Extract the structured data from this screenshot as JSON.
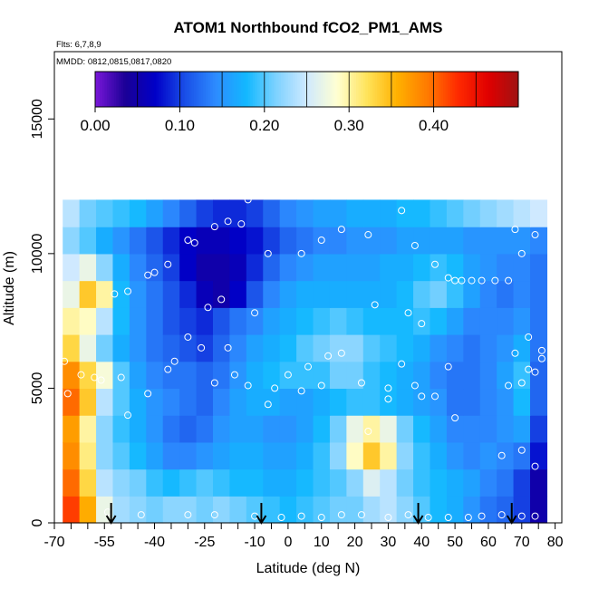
{
  "chart_data": {
    "type": "heatmap",
    "title": "ATOM1 Northbound fCO2_PM1_AMS",
    "flights_note": "Flts: 6,7,8,9",
    "dates_note": "MMDD: 0812,0815,0817,0820",
    "xlabel": "Latitude (deg N)",
    "ylabel": "Altitude (m)",
    "xlim": [
      -70,
      82
    ],
    "ylim": [
      0,
      17500
    ],
    "x_ticks": [
      -70,
      -55,
      -40,
      -25,
      -10,
      0,
      10,
      20,
      30,
      40,
      50,
      60,
      70,
      80
    ],
    "x_ticklabels": [
      "-70",
      "-55",
      "-40",
      "-25",
      "-10",
      "0",
      "10",
      "20",
      "30",
      "40",
      "50",
      "60",
      "70",
      "80"
    ],
    "x_minor_ticks": [
      -65,
      -60,
      -50,
      -45,
      -35,
      -30,
      -20,
      -15,
      -5,
      5,
      15,
      25,
      35,
      45,
      55,
      65,
      75
    ],
    "y_ticks": [
      0,
      5000,
      10000,
      15000
    ],
    "y_ticklabels": [
      "0",
      "5000",
      "10000",
      "15000"
    ],
    "colorbar": {
      "ticks": [
        0.0,
        0.1,
        0.2,
        0.3,
        0.4
      ],
      "ticklabels": [
        "0.00",
        "0.10",
        "0.20",
        "0.30",
        "0.40"
      ],
      "range": [
        0.0,
        0.5
      ],
      "colors": [
        "#7a17d9",
        "#1a0096",
        "#0000c8",
        "#1a50e8",
        "#2d8cff",
        "#12b8ff",
        "#7fd2ff",
        "#cfe9ff",
        "#ffffd2",
        "#ffe35a",
        "#ffb000",
        "#ff7a00",
        "#ff2a00",
        "#e00000",
        "#a01212"
      ]
    },
    "flight_arrows_lat": [
      -53,
      -8,
      39,
      67
    ],
    "x_centers": [
      -65,
      -60,
      -55,
      -50,
      -45,
      -40,
      -35,
      -30,
      -25,
      -20,
      -15,
      -10,
      -5,
      0,
      5,
      10,
      15,
      20,
      25,
      30,
      35,
      40,
      45,
      50,
      55,
      60,
      65,
      70,
      75
    ],
    "alt_levels": [
      500,
      1500,
      2500,
      3500,
      4500,
      5500,
      6500,
      7500,
      8500,
      9500,
      10500,
      11500
    ],
    "values": [
      [
        0.42,
        0.36,
        0.27,
        0.23,
        0.22,
        0.21,
        0.22,
        0.22,
        0.21,
        0.22,
        0.21,
        0.2,
        0.19,
        0.18,
        0.19,
        0.2,
        0.21,
        0.21,
        0.23,
        0.24,
        0.22,
        0.2,
        0.18,
        0.17,
        0.15,
        0.13,
        0.12,
        0.1,
        0.05
      ],
      [
        0.4,
        0.33,
        0.24,
        0.22,
        0.21,
        0.19,
        0.18,
        0.19,
        0.2,
        0.19,
        0.18,
        0.18,
        0.17,
        0.17,
        0.18,
        0.19,
        0.2,
        0.22,
        0.26,
        0.24,
        0.21,
        0.19,
        0.18,
        0.17,
        0.16,
        0.14,
        0.13,
        0.1,
        0.05
      ],
      [
        0.38,
        0.31,
        0.22,
        0.2,
        0.18,
        0.16,
        0.14,
        0.14,
        0.15,
        0.16,
        0.17,
        0.17,
        0.16,
        0.16,
        0.17,
        0.19,
        0.22,
        0.29,
        0.34,
        0.3,
        0.22,
        0.19,
        0.17,
        0.15,
        0.14,
        0.15,
        0.14,
        0.13,
        0.08
      ],
      [
        0.37,
        0.3,
        0.22,
        0.19,
        0.17,
        0.15,
        0.13,
        0.12,
        0.13,
        0.15,
        0.16,
        0.16,
        0.15,
        0.15,
        0.16,
        0.18,
        0.21,
        0.27,
        0.3,
        0.27,
        0.21,
        0.18,
        0.16,
        0.14,
        0.14,
        0.14,
        0.15,
        0.16,
        0.1
      ],
      [
        0.4,
        0.34,
        0.24,
        0.2,
        0.17,
        0.15,
        0.14,
        0.13,
        0.12,
        0.14,
        0.16,
        0.17,
        0.17,
        0.16,
        0.16,
        0.17,
        0.18,
        0.19,
        0.19,
        0.18,
        0.17,
        0.16,
        0.15,
        0.13,
        0.13,
        0.14,
        0.15,
        0.18,
        0.12
      ],
      [
        0.38,
        0.33,
        0.28,
        0.2,
        0.16,
        0.14,
        0.13,
        0.13,
        0.12,
        0.13,
        0.15,
        0.17,
        0.18,
        0.19,
        0.19,
        0.19,
        0.21,
        0.21,
        0.19,
        0.18,
        0.17,
        0.16,
        0.14,
        0.13,
        0.13,
        0.14,
        0.16,
        0.19,
        0.12
      ],
      [
        0.33,
        0.27,
        0.21,
        0.17,
        0.15,
        0.13,
        0.12,
        0.11,
        0.1,
        0.12,
        0.14,
        0.16,
        0.17,
        0.18,
        0.2,
        0.21,
        0.22,
        0.22,
        0.2,
        0.19,
        0.18,
        0.17,
        0.15,
        0.14,
        0.13,
        0.14,
        0.15,
        0.17,
        0.13
      ],
      [
        0.3,
        0.29,
        0.24,
        0.18,
        0.15,
        0.13,
        0.11,
        0.1,
        0.09,
        0.11,
        0.13,
        0.14,
        0.16,
        0.17,
        0.18,
        0.19,
        0.2,
        0.19,
        0.18,
        0.18,
        0.18,
        0.19,
        0.18,
        0.16,
        0.14,
        0.14,
        0.14,
        0.15,
        0.13
      ],
      [
        0.27,
        0.34,
        0.3,
        0.18,
        0.15,
        0.13,
        0.11,
        0.09,
        0.06,
        0.05,
        0.07,
        0.11,
        0.14,
        0.16,
        0.17,
        0.17,
        0.17,
        0.17,
        0.17,
        0.17,
        0.18,
        0.2,
        0.21,
        0.19,
        0.16,
        0.14,
        0.13,
        0.14,
        0.13
      ],
      [
        0.25,
        0.27,
        0.22,
        0.17,
        0.14,
        0.12,
        0.1,
        0.07,
        0.05,
        0.05,
        0.06,
        0.09,
        0.12,
        0.14,
        0.15,
        0.16,
        0.16,
        0.16,
        0.16,
        0.17,
        0.17,
        0.18,
        0.19,
        0.18,
        0.16,
        0.15,
        0.14,
        0.14,
        0.13
      ],
      [
        0.22,
        0.2,
        0.17,
        0.15,
        0.13,
        0.11,
        0.09,
        0.07,
        0.06,
        0.06,
        0.07,
        0.08,
        0.1,
        0.12,
        0.13,
        0.14,
        0.14,
        0.15,
        0.15,
        0.15,
        0.16,
        0.16,
        0.16,
        0.16,
        0.15,
        0.15,
        0.15,
        0.15,
        0.14
      ],
      [
        0.24,
        0.21,
        0.2,
        0.19,
        0.18,
        0.16,
        0.14,
        0.12,
        0.1,
        0.09,
        0.09,
        0.1,
        0.12,
        0.14,
        0.15,
        0.16,
        0.16,
        0.17,
        0.17,
        0.17,
        0.18,
        0.18,
        0.19,
        0.2,
        0.21,
        0.22,
        0.23,
        0.24,
        0.25
      ]
    ],
    "sample_points": [
      [
        -67,
        6000
      ],
      [
        -66,
        4800
      ],
      [
        -62,
        5500
      ],
      [
        -58,
        5400
      ],
      [
        -56,
        5300
      ],
      [
        -50,
        5400
      ],
      [
        -52,
        8500
      ],
      [
        -48,
        8600
      ],
      [
        -42,
        9200
      ],
      [
        -40,
        9300
      ],
      [
        -36,
        9600
      ],
      [
        -30,
        10500
      ],
      [
        -28,
        10400
      ],
      [
        -22,
        11000
      ],
      [
        -18,
        11200
      ],
      [
        -14,
        11100
      ],
      [
        -12,
        12000
      ],
      [
        -6,
        10000
      ],
      [
        4,
        10000
      ],
      [
        10,
        10500
      ],
      [
        16,
        10900
      ],
      [
        24,
        10700
      ],
      [
        34,
        11600
      ],
      [
        38,
        10300
      ],
      [
        44,
        9600
      ],
      [
        48,
        9100
      ],
      [
        50,
        9000
      ],
      [
        52,
        9000
      ],
      [
        55,
        9000
      ],
      [
        58,
        9000
      ],
      [
        62,
        9000
      ],
      [
        66,
        9000
      ],
      [
        68,
        10900
      ],
      [
        70,
        10000
      ],
      [
        74,
        10700
      ],
      [
        -24,
        8000
      ],
      [
        -20,
        8300
      ],
      [
        -10,
        7800
      ],
      [
        26,
        8100
      ],
      [
        36,
        7800
      ],
      [
        40,
        7400
      ],
      [
        -30,
        6900
      ],
      [
        -26,
        6500
      ],
      [
        -18,
        6500
      ],
      [
        -36,
        5700
      ],
      [
        -34,
        6000
      ],
      [
        -16,
        5500
      ],
      [
        -12,
        5100
      ],
      [
        -4,
        5000
      ],
      [
        0,
        5500
      ],
      [
        4,
        4900
      ],
      [
        6,
        5800
      ],
      [
        10,
        5100
      ],
      [
        12,
        6200
      ],
      [
        16,
        6300
      ],
      [
        22,
        5200
      ],
      [
        30,
        5000
      ],
      [
        34,
        5900
      ],
      [
        38,
        5100
      ],
      [
        40,
        4700
      ],
      [
        44,
        4700
      ],
      [
        48,
        5800
      ],
      [
        -48,
        4000
      ],
      [
        -42,
        4800
      ],
      [
        -22,
        5200
      ],
      [
        -6,
        4400
      ],
      [
        24,
        3400
      ],
      [
        30,
        4600
      ],
      [
        50,
        3900
      ],
      [
        64,
        2500
      ],
      [
        70,
        2700
      ],
      [
        74,
        2100
      ],
      [
        66,
        5100
      ],
      [
        70,
        5200
      ],
      [
        72,
        5700
      ],
      [
        74,
        5600
      ],
      [
        76,
        6100
      ],
      [
        76,
        6400
      ],
      [
        68,
        6300
      ],
      [
        72,
        6900
      ],
      [
        -54,
        400
      ],
      [
        -44,
        300
      ],
      [
        -30,
        300
      ],
      [
        -22,
        300
      ],
      [
        -10,
        250
      ],
      [
        -2,
        200
      ],
      [
        4,
        250
      ],
      [
        10,
        200
      ],
      [
        16,
        300
      ],
      [
        22,
        300
      ],
      [
        30,
        200
      ],
      [
        36,
        300
      ],
      [
        42,
        200
      ],
      [
        48,
        200
      ],
      [
        54,
        200
      ],
      [
        58,
        250
      ],
      [
        64,
        300
      ],
      [
        70,
        250
      ],
      [
        74,
        250
      ]
    ]
  }
}
